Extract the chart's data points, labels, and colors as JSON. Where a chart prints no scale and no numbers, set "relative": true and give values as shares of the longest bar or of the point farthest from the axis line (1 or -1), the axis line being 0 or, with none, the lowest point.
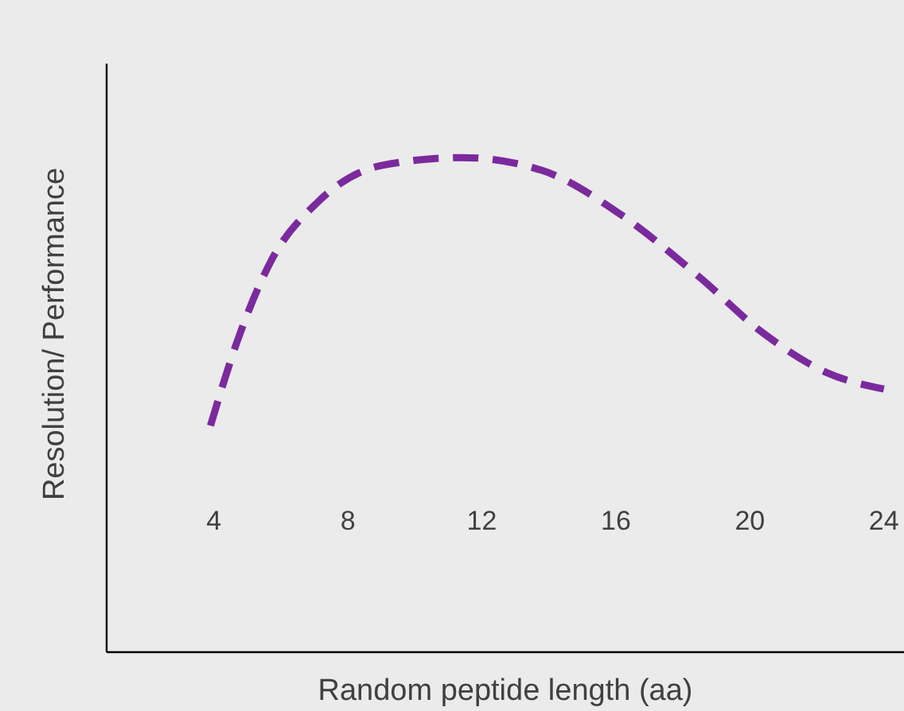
{
  "chart_data": {
    "type": "line",
    "xlabel": "Random peptide length (aa)",
    "ylabel": "Resolution/ Performance",
    "relative": true,
    "xlim": [
      0.8,
      24.6
    ],
    "xticks": [
      4,
      8,
      12,
      16,
      20,
      24
    ],
    "line_style": "dashed",
    "marker": "none",
    "series": [
      {
        "color": "#7b2a9e",
        "x": [
          3.9,
          4.7,
          5.7,
          7.1,
          9,
          11.4,
          13.8,
          16.1,
          18.5,
          20.4,
          22.3,
          24
        ],
        "values": [
          0.458,
          0.629,
          0.79,
          0.91,
          0.984,
          1,
          0.974,
          0.887,
          0.758,
          0.645,
          0.565,
          0.532
        ]
      }
    ]
  }
}
